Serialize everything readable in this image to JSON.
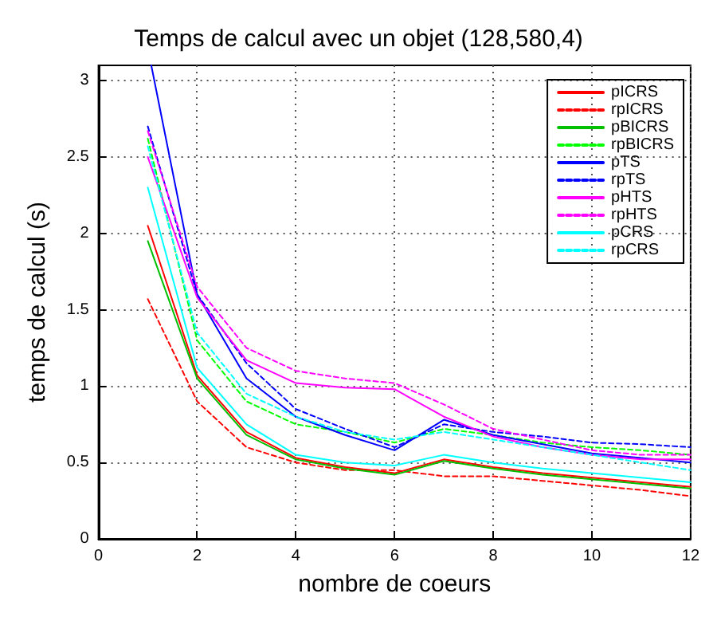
{
  "chart_data": {
    "type": "line",
    "title": "Temps de calcul avec un objet (128,580,4)",
    "xlabel": "nombre de coeurs",
    "ylabel": "temps de calcul (s)",
    "x": [
      1,
      2,
      3,
      4,
      5,
      6,
      7,
      8,
      9,
      10,
      11,
      12
    ],
    "series": [
      {
        "name": "pICRS",
        "color": "#ff0000",
        "line_style": "solid",
        "values": [
          2.05,
          1.07,
          0.7,
          0.53,
          0.47,
          0.43,
          0.52,
          0.47,
          0.43,
          0.4,
          0.37,
          0.34
        ]
      },
      {
        "name": "rpICRS",
        "color": "#ff0000",
        "line_style": "dashed",
        "values": [
          1.57,
          0.9,
          0.6,
          0.5,
          0.45,
          0.45,
          0.41,
          0.41,
          0.38,
          0.35,
          0.32,
          0.28
        ]
      },
      {
        "name": "pBICRS",
        "color": "#00c000",
        "line_style": "solid",
        "values": [
          1.95,
          1.05,
          0.68,
          0.52,
          0.46,
          0.42,
          0.51,
          0.46,
          0.42,
          0.39,
          0.36,
          0.33
        ]
      },
      {
        "name": "rpBICRS",
        "color": "#00ff00",
        "line_style": "dashed",
        "values": [
          2.62,
          1.3,
          0.9,
          0.75,
          0.7,
          0.63,
          0.72,
          0.68,
          0.63,
          0.6,
          0.58,
          0.55
        ]
      },
      {
        "name": "pTS",
        "color": "#0000ff",
        "line_style": "solid",
        "x": [
          1.07,
          2,
          3,
          4,
          5,
          6,
          7,
          8,
          9,
          10,
          11,
          12
        ],
        "values": [
          3.1,
          1.6,
          1.05,
          0.8,
          0.68,
          0.58,
          0.78,
          0.68,
          0.62,
          0.56,
          0.53,
          0.5
        ]
      },
      {
        "name": "rpTS",
        "color": "#0000ff",
        "line_style": "dashed",
        "values": [
          2.7,
          1.6,
          1.15,
          0.85,
          0.72,
          0.6,
          0.75,
          0.7,
          0.67,
          0.63,
          0.62,
          0.6
        ]
      },
      {
        "name": "pHTS",
        "color": "#ff00ff",
        "line_style": "solid",
        "values": [
          2.5,
          1.58,
          1.17,
          1.02,
          0.99,
          0.98,
          0.8,
          0.67,
          0.6,
          0.55,
          0.52,
          0.52
        ]
      },
      {
        "name": "rpHTS",
        "color": "#ff00ff",
        "line_style": "dashed",
        "values": [
          2.67,
          1.65,
          1.25,
          1.1,
          1.05,
          1.02,
          0.88,
          0.72,
          0.65,
          0.58,
          0.55,
          0.55
        ]
      },
      {
        "name": "pCRS",
        "color": "#00ffff",
        "line_style": "solid",
        "values": [
          2.3,
          1.12,
          0.75,
          0.55,
          0.5,
          0.48,
          0.55,
          0.5,
          0.46,
          0.43,
          0.4,
          0.37
        ]
      },
      {
        "name": "rpCRS",
        "color": "#00ffff",
        "line_style": "dashed",
        "values": [
          2.57,
          1.35,
          0.95,
          0.8,
          0.7,
          0.65,
          0.7,
          0.65,
          0.6,
          0.55,
          0.5,
          0.45
        ]
      }
    ],
    "xlim": [
      0,
      12
    ],
    "xticks": [
      0,
      2,
      4,
      6,
      8,
      10,
      12
    ],
    "ylim": [
      0,
      3.1
    ],
    "yticks": [
      0,
      0.5,
      1,
      1.5,
      2,
      2.5,
      3
    ],
    "grid": true,
    "legend": "top right",
    "marker": "none"
  }
}
